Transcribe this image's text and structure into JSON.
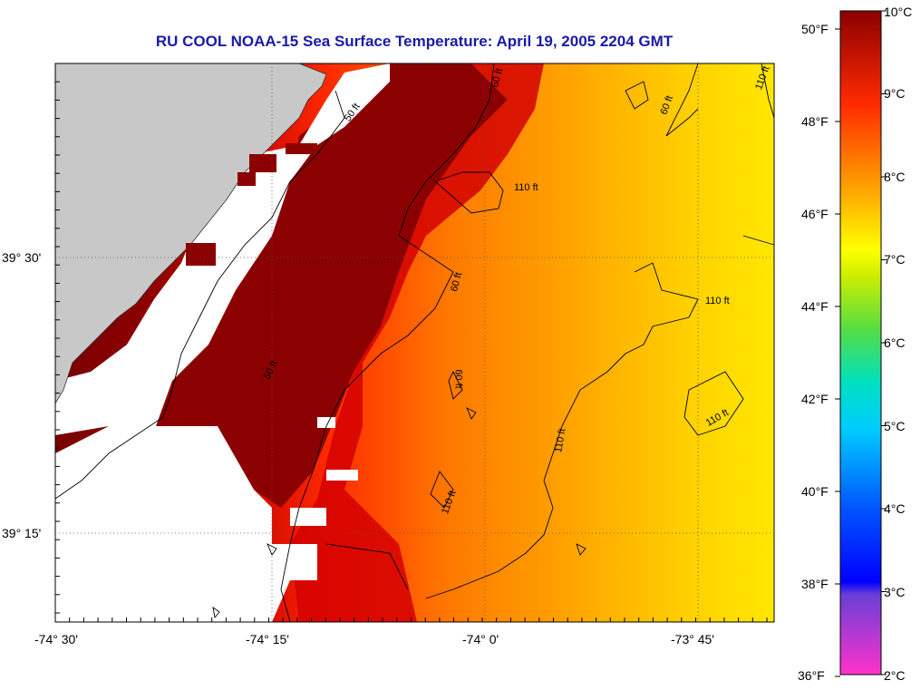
{
  "title": "RU COOL  NOAA-15  Sea Surface Temperature:  April 19, 2005 2204 GMT",
  "map": {
    "x_tick_labels": [
      "-74° 30'",
      "-74° 15'",
      "-74° 0'",
      "-73° 45'"
    ],
    "y_tick_labels": [
      "39° 30'",
      "39° 15'"
    ],
    "contour_labels": [
      "50 ft",
      "60 ft",
      "110 ft"
    ],
    "land_color": "#c8c8c8",
    "no_data_color": "#ffffff"
  },
  "colorbar": {
    "fahrenheit_labels": [
      "50°F",
      "48°F",
      "46°F",
      "44°F",
      "42°F",
      "40°F",
      "38°F",
      "36°F"
    ],
    "celsius_labels": [
      "10°C",
      "9°C",
      "8°C",
      "7°C",
      "6°C",
      "5°C",
      "4°C",
      "3°C",
      "2°C"
    ],
    "colors": [
      "#ff33cc",
      "#6a3fd6",
      "#0000ff",
      "#00aaff",
      "#00e0e0",
      "#33cc66",
      "#ccee00",
      "#ffff00",
      "#ffa500",
      "#ff2a00",
      "#8b0000"
    ]
  }
}
